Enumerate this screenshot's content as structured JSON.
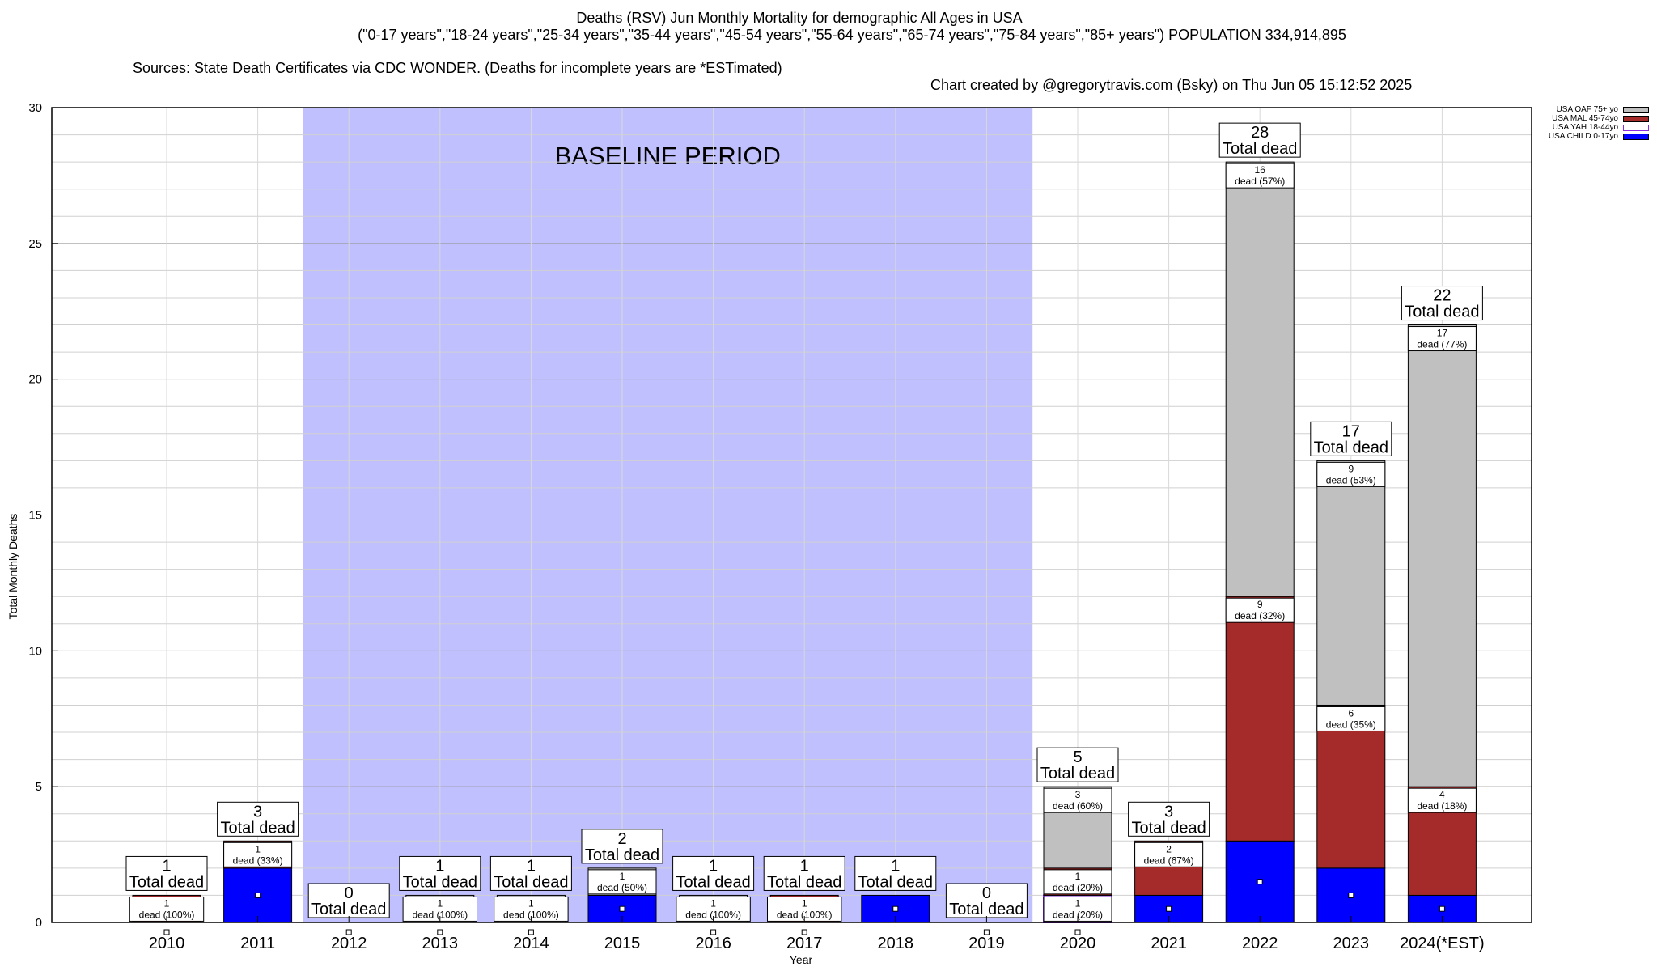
{
  "title": {
    "line1": "Deaths (RSV) Jun Monthly Mortality for demographic All Ages in USA",
    "line2": "(\"0-17 years\",\"18-24 years\",\"25-34 years\",\"35-44 years\",\"45-54 years\",\"55-64 years\",\"65-74 years\",\"75-84 years\",\"85+ years\") POPULATION 334,914,895",
    "source": "Sources: State Death Certificates via CDC WONDER. (Deaths for incomplete years are *ESTimated)",
    "credit": "Chart created by @gregorytravis.com (Bsky) on Thu Jun 05 15:12:52 2025"
  },
  "colors": {
    "child": "#0000ff",
    "yah": "#ffffff",
    "yah_border": "#8a2be2",
    "mal": "#a52a2a",
    "oaf": "#c0c0c0",
    "baseline": "#c0c0ff"
  },
  "legend": [
    {
      "label": "USA OAF 75+ yo",
      "color": "#c0c0c0"
    },
    {
      "label": "USA MAL 45-74yo",
      "color": "#a52a2a"
    },
    {
      "label": "USA YAH 18-44yo",
      "color": "#ffffff"
    },
    {
      "label": "USA CHILD 0-17yo",
      "color": "#0000ff"
    }
  ],
  "chart_data": {
    "type": "bar",
    "stacked": true,
    "xlabel": "Year",
    "ylabel": "Total Monthly Deaths",
    "ylim": [
      0,
      30
    ],
    "yticks": [
      0,
      5,
      10,
      15,
      20,
      25,
      30
    ],
    "grid": true,
    "legend_position": "top-right outside",
    "baseline_label": "BASELINE PERIOD",
    "baseline_range": [
      "2012",
      "2019"
    ],
    "total_suffix": "Total dead",
    "categories": [
      "2010",
      "2011",
      "2012",
      "2013",
      "2014",
      "2015",
      "2016",
      "2017",
      "2018",
      "2019",
      "2020",
      "2021",
      "2022",
      "2023",
      "2024(*EST)"
    ],
    "series": [
      {
        "name": "USA CHILD 0-17yo",
        "values": [
          0,
          2,
          0,
          0,
          0,
          1,
          0,
          0,
          1,
          0,
          0,
          1,
          3,
          2,
          1
        ]
      },
      {
        "name": "USA YAH 18-44yo",
        "values": [
          0,
          0,
          0,
          0,
          0,
          0,
          0,
          0,
          0,
          0,
          1,
          0,
          0,
          0,
          0
        ]
      },
      {
        "name": "USA MAL 45-74yo",
        "values": [
          1,
          1,
          0,
          0,
          0,
          0,
          0,
          1,
          0,
          0,
          1,
          2,
          9,
          6,
          4
        ]
      },
      {
        "name": "USA OAF 75+ yo",
        "values": [
          0,
          0,
          0,
          1,
          1,
          1,
          1,
          0,
          0,
          0,
          3,
          0,
          16,
          9,
          17
        ]
      }
    ],
    "totals": [
      1,
      3,
      0,
      1,
      1,
      2,
      1,
      1,
      1,
      0,
      5,
      3,
      28,
      17,
      22
    ],
    "segment_labels": [
      [
        {
          "series": 2,
          "count": "1",
          "text": "dead (100%)"
        }
      ],
      [
        {
          "series": 2,
          "count": "1",
          "text": "dead (33%)"
        }
      ],
      [],
      [
        {
          "series": 3,
          "count": "1",
          "text": "dead (100%)"
        }
      ],
      [
        {
          "series": 3,
          "count": "1",
          "text": "dead (100%)"
        }
      ],
      [
        {
          "series": 3,
          "count": "1",
          "text": "dead (50%)"
        }
      ],
      [
        {
          "series": 3,
          "count": "1",
          "text": "dead (100%)"
        }
      ],
      [
        {
          "series": 2,
          "count": "1",
          "text": "dead (100%)"
        }
      ],
      [],
      [],
      [
        {
          "series": 1,
          "count": "1",
          "text": "dead (20%)"
        },
        {
          "series": 2,
          "count": "1",
          "text": "dead (20%)"
        },
        {
          "series": 3,
          "count": "3",
          "text": "dead (60%)"
        }
      ],
      [
        {
          "series": 2,
          "count": "2",
          "text": "dead (67%)"
        }
      ],
      [
        {
          "series": 2,
          "count": "9",
          "text": "dead (32%)"
        },
        {
          "series": 3,
          "count": "16",
          "text": "dead (57%)"
        }
      ],
      [
        {
          "series": 2,
          "count": "6",
          "text": "dead (35%)"
        },
        {
          "series": 3,
          "count": "9",
          "text": "dead (53%)"
        }
      ],
      [
        {
          "series": 2,
          "count": "4",
          "text": "dead (18%)"
        },
        {
          "series": 3,
          "count": "17",
          "text": "dead (77%)"
        }
      ]
    ]
  }
}
